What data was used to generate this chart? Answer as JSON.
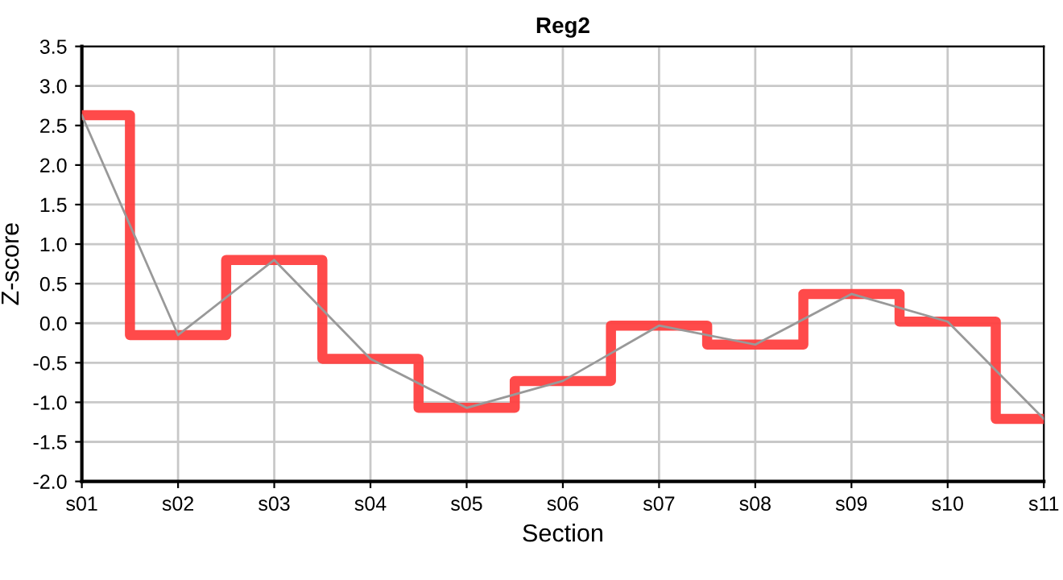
{
  "chart_data": {
    "type": "line",
    "title": "Reg2",
    "xlabel": "Section",
    "ylabel": "Z-score",
    "categories": [
      "s01",
      "s02",
      "s03",
      "s04",
      "s05",
      "s06",
      "s07",
      "s08",
      "s09",
      "s10",
      "s11"
    ],
    "series": [
      {
        "type": "step",
        "color": "#ff4040",
        "values": [
          2.63,
          -0.15,
          0.8,
          -0.45,
          -1.07,
          -0.73,
          -0.03,
          -0.27,
          0.37,
          0.02,
          -1.21
        ]
      },
      {
        "color": "#999999",
        "values": [
          2.63,
          -0.15,
          0.8,
          -0.45,
          -1.07,
          -0.73,
          -0.03,
          -0.27,
          0.37,
          0.02,
          -1.21
        ]
      }
    ],
    "ylim": [
      -2.0,
      3.5
    ],
    "yticks": [
      {
        "value": -2.0,
        "label": "-2.0"
      },
      {
        "value": -1.5,
        "label": "-1.5"
      },
      {
        "value": -1.0,
        "label": "-1.0"
      },
      {
        "value": -0.5,
        "label": "-0.5"
      },
      {
        "value": 0.0,
        "label": "0.0"
      },
      {
        "value": 0.5,
        "label": "0.5"
      },
      {
        "value": 1.0,
        "label": "1.0"
      },
      {
        "value": 1.5,
        "label": "1.5"
      },
      {
        "value": 2.0,
        "label": "2.0"
      },
      {
        "value": 2.5,
        "label": "2.5"
      },
      {
        "value": 3.0,
        "label": "3.0"
      },
      {
        "value": 3.5,
        "label": "3.5"
      }
    ],
    "grid": true
  }
}
